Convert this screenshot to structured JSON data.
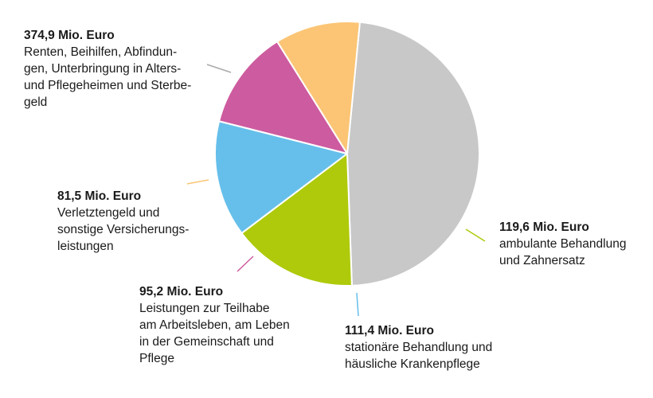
{
  "chart_data": {
    "type": "pie",
    "unit": "Mio. Euro",
    "slices": [
      {
        "value_label": "374,9 Mio. Euro",
        "value": 374.9,
        "label": "Renten, Beihilfen, Abfindun-\ngen, Unterbringung in Alters-\nund Pflegeheimen und Sterbe-\ngeld",
        "color": "#c8c8c8"
      },
      {
        "value_label": "119,6 Mio. Euro",
        "value": 119.6,
        "label": "ambulante Behandlung\nund Zahnersatz",
        "color": "#afca0b"
      },
      {
        "value_label": "111,4 Mio. Euro",
        "value": 111.4,
        "label": "stationäre Behandlung und\nhäusliche Krankenpflege",
        "color": "#66bfea"
      },
      {
        "value_label": "95,2 Mio. Euro",
        "value": 95.2,
        "label": "Leistungen zur Teilhabe\nam Arbeitsleben, am Leben\nin der Gemeinschaft und\nPflege",
        "color": "#cd5b9f"
      },
      {
        "value_label": "81,5 Mio. Euro",
        "value": 81.5,
        "label": "Verletztengeld und\nsonstige Versicherungs-\nleistungen",
        "color": "#fbc575"
      }
    ],
    "start_angle_deg": -84.5
  }
}
